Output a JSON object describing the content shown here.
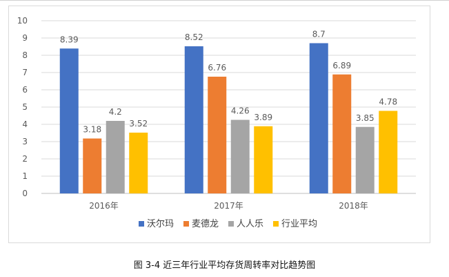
{
  "chart_data": {
    "type": "bar",
    "title": "",
    "xlabel": "",
    "ylabel": "",
    "ylim": [
      0,
      10
    ],
    "yticks": [
      "0",
      "1",
      "2",
      "3",
      "4",
      "5",
      "6",
      "7",
      "8",
      "9",
      "10"
    ],
    "grid": true,
    "legend_position": "bottom",
    "categories": [
      "2016年",
      "2017年",
      "2018年"
    ],
    "series": [
      {
        "name": "沃尔玛",
        "color": "#4472C4",
        "values": [
          8.39,
          8.52,
          8.7
        ],
        "labels": [
          "8.39",
          "8.52",
          "8.7"
        ]
      },
      {
        "name": "麦德龙",
        "color": "#ED7D31",
        "values": [
          3.18,
          6.76,
          6.89
        ],
        "labels": [
          "3.18",
          "6.76",
          "6.89"
        ]
      },
      {
        "name": "人人乐",
        "color": "#A5A5A5",
        "values": [
          4.2,
          4.26,
          3.85
        ],
        "labels": [
          "4.2",
          "4.26",
          "3.85"
        ]
      },
      {
        "name": "行业平均",
        "color": "#FFC000",
        "values": [
          3.52,
          3.89,
          4.78
        ],
        "labels": [
          "3.52",
          "3.89",
          "4.78"
        ]
      }
    ]
  },
  "caption": "图 3-4  近三年行业平均存货周转率对比趋势图"
}
